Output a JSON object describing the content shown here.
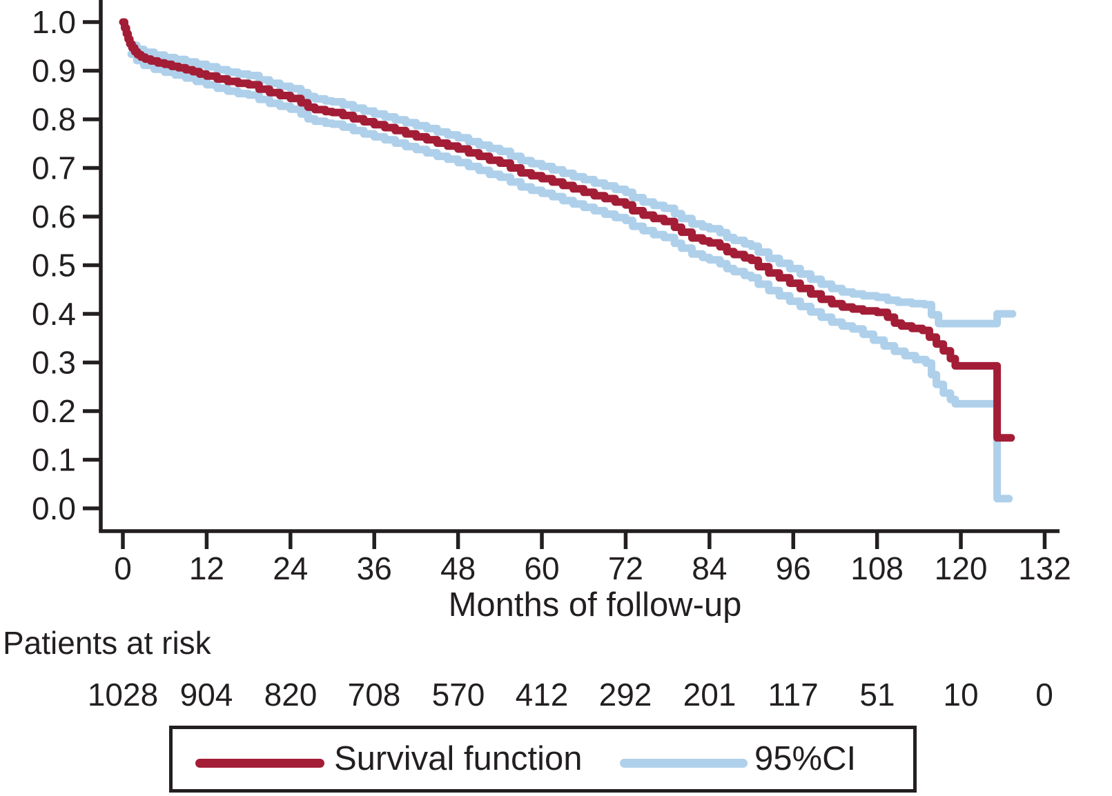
{
  "figure": {
    "background": "#ffffff",
    "text_color": "#231f20"
  },
  "chart_data": {
    "type": "line",
    "subtype": "kaplan-meier-step",
    "title": "",
    "xlabel": "Months of follow-up",
    "ylabel": "",
    "xlim": [
      0,
      132
    ],
    "ylim": [
      0.0,
      1.0
    ],
    "grid": false,
    "legend_position": "bottom",
    "x_ticks": [
      0,
      12,
      24,
      36,
      48,
      60,
      72,
      84,
      96,
      108,
      120,
      132
    ],
    "y_ticks": [
      "0.0",
      "0.1",
      "0.2",
      "0.3",
      "0.4",
      "0.5",
      "0.6",
      "0.7",
      "0.8",
      "0.9",
      "1.0"
    ],
    "series": [
      {
        "name": "Survival function",
        "color": "#a31d36",
        "width": 11,
        "points": [
          [
            0,
            1.0
          ],
          [
            0.25,
            0.988
          ],
          [
            0.5,
            0.976
          ],
          [
            0.75,
            0.965
          ],
          [
            1,
            0.955
          ],
          [
            1.3,
            0.947
          ],
          [
            1.7,
            0.939
          ],
          [
            2.1,
            0.933
          ],
          [
            2.6,
            0.928
          ],
          [
            3.2,
            0.924
          ],
          [
            4,
            0.92
          ],
          [
            5,
            0.916
          ],
          [
            6,
            0.913
          ],
          [
            7,
            0.909
          ],
          [
            8,
            0.906
          ],
          [
            9,
            0.902
          ],
          [
            10,
            0.898
          ],
          [
            11,
            0.893
          ],
          [
            12,
            0.889
          ],
          [
            13.5,
            0.883
          ],
          [
            15,
            0.878
          ],
          [
            16.5,
            0.874
          ],
          [
            18,
            0.871
          ],
          [
            19.5,
            0.862
          ],
          [
            21,
            0.855
          ],
          [
            22.5,
            0.849
          ],
          [
            24,
            0.843
          ],
          [
            25.5,
            0.834
          ],
          [
            26.5,
            0.825
          ],
          [
            27.5,
            0.82
          ],
          [
            29,
            0.816
          ],
          [
            30,
            0.814
          ],
          [
            31.5,
            0.808
          ],
          [
            33,
            0.801
          ],
          [
            34.5,
            0.795
          ],
          [
            36,
            0.789
          ],
          [
            37.5,
            0.783
          ],
          [
            39,
            0.777
          ],
          [
            40.5,
            0.77
          ],
          [
            42,
            0.764
          ],
          [
            43.5,
            0.758
          ],
          [
            45,
            0.751
          ],
          [
            46.5,
            0.745
          ],
          [
            48,
            0.739
          ],
          [
            49.5,
            0.731
          ],
          [
            51,
            0.724
          ],
          [
            52.5,
            0.716
          ],
          [
            54,
            0.71
          ],
          [
            55.5,
            0.7
          ],
          [
            57,
            0.69
          ],
          [
            58.5,
            0.684
          ],
          [
            60,
            0.678
          ],
          [
            61.5,
            0.671
          ],
          [
            63,
            0.664
          ],
          [
            64.5,
            0.657
          ],
          [
            66,
            0.65
          ],
          [
            67.5,
            0.643
          ],
          [
            69,
            0.637
          ],
          [
            70.5,
            0.63
          ],
          [
            72,
            0.624
          ],
          [
            73,
            0.612
          ],
          [
            74.5,
            0.603
          ],
          [
            76,
            0.596
          ],
          [
            77.5,
            0.59
          ],
          [
            79,
            0.578
          ],
          [
            80,
            0.568
          ],
          [
            81.5,
            0.556
          ],
          [
            83,
            0.55
          ],
          [
            84,
            0.546
          ],
          [
            85.5,
            0.538
          ],
          [
            86.5,
            0.528
          ],
          [
            87.5,
            0.522
          ],
          [
            89,
            0.515
          ],
          [
            90,
            0.51
          ],
          [
            91,
            0.497
          ],
          [
            92.5,
            0.484
          ],
          [
            94,
            0.474
          ],
          [
            95.5,
            0.463
          ],
          [
            97,
            0.452
          ],
          [
            98.5,
            0.441
          ],
          [
            100,
            0.43
          ],
          [
            101.5,
            0.421
          ],
          [
            103,
            0.414
          ],
          [
            104.5,
            0.41
          ],
          [
            106,
            0.406
          ],
          [
            108,
            0.403
          ],
          [
            109.5,
            0.393
          ],
          [
            110.5,
            0.381
          ],
          [
            111.5,
            0.375
          ],
          [
            113,
            0.37
          ],
          [
            114.5,
            0.366
          ],
          [
            115.5,
            0.352
          ],
          [
            116.5,
            0.338
          ],
          [
            117.5,
            0.324
          ],
          [
            118.5,
            0.308
          ],
          [
            119.2,
            0.293
          ],
          [
            125.2,
            0.293
          ],
          [
            125.2,
            0.145
          ],
          [
            127.2,
            0.145
          ]
        ]
      },
      {
        "name": "95%CI upper",
        "color": "#afd0ea",
        "width": 11,
        "points": [
          [
            1.2,
            0.952
          ],
          [
            2,
            0.944
          ],
          [
            3,
            0.938
          ],
          [
            4.5,
            0.932
          ],
          [
            6,
            0.927
          ],
          [
            7.5,
            0.923
          ],
          [
            9,
            0.918
          ],
          [
            10.5,
            0.913
          ],
          [
            12,
            0.908
          ],
          [
            13.5,
            0.902
          ],
          [
            15,
            0.897
          ],
          [
            16.5,
            0.893
          ],
          [
            18,
            0.89
          ],
          [
            19.5,
            0.881
          ],
          [
            21,
            0.874
          ],
          [
            22.5,
            0.868
          ],
          [
            24,
            0.863
          ],
          [
            25.5,
            0.855
          ],
          [
            26.5,
            0.847
          ],
          [
            27.5,
            0.842
          ],
          [
            29,
            0.838
          ],
          [
            30,
            0.836
          ],
          [
            31.5,
            0.83
          ],
          [
            33,
            0.823
          ],
          [
            34.5,
            0.817
          ],
          [
            36,
            0.811
          ],
          [
            37.5,
            0.805
          ],
          [
            39,
            0.799
          ],
          [
            40.5,
            0.793
          ],
          [
            42,
            0.787
          ],
          [
            43.5,
            0.781
          ],
          [
            45,
            0.774
          ],
          [
            46.5,
            0.768
          ],
          [
            48,
            0.762
          ],
          [
            49.5,
            0.754
          ],
          [
            51,
            0.747
          ],
          [
            52.5,
            0.74
          ],
          [
            54,
            0.734
          ],
          [
            55.5,
            0.724
          ],
          [
            57,
            0.715
          ],
          [
            58.5,
            0.709
          ],
          [
            60,
            0.703
          ],
          [
            61.5,
            0.696
          ],
          [
            63,
            0.689
          ],
          [
            64.5,
            0.682
          ],
          [
            66,
            0.676
          ],
          [
            67.5,
            0.669
          ],
          [
            69,
            0.663
          ],
          [
            70.5,
            0.656
          ],
          [
            72,
            0.65
          ],
          [
            73,
            0.639
          ],
          [
            74.5,
            0.63
          ],
          [
            76,
            0.623
          ],
          [
            77.5,
            0.617
          ],
          [
            79,
            0.606
          ],
          [
            80,
            0.596
          ],
          [
            81.5,
            0.585
          ],
          [
            83,
            0.579
          ],
          [
            84,
            0.575
          ],
          [
            85.5,
            0.567
          ],
          [
            86.5,
            0.557
          ],
          [
            87.5,
            0.551
          ],
          [
            89,
            0.544
          ],
          [
            90,
            0.539
          ],
          [
            91,
            0.527
          ],
          [
            92.5,
            0.514
          ],
          [
            94,
            0.504
          ],
          [
            95.5,
            0.493
          ],
          [
            97,
            0.482
          ],
          [
            98.5,
            0.471
          ],
          [
            100,
            0.461
          ],
          [
            101.5,
            0.452
          ],
          [
            103,
            0.445
          ],
          [
            104.5,
            0.441
          ],
          [
            106,
            0.437
          ],
          [
            108,
            0.434
          ],
          [
            109.5,
            0.428
          ],
          [
            111,
            0.424
          ],
          [
            113,
            0.421
          ],
          [
            114.8,
            0.419
          ],
          [
            115.8,
            0.398
          ],
          [
            116.8,
            0.38
          ],
          [
            125.2,
            0.38
          ],
          [
            125.2,
            0.4
          ],
          [
            127.4,
            0.4
          ]
        ]
      },
      {
        "name": "95%CI lower",
        "color": "#afd0ea",
        "width": 11,
        "points": [
          [
            1.2,
            0.934
          ],
          [
            2,
            0.921
          ],
          [
            3,
            0.911
          ],
          [
            4.5,
            0.903
          ],
          [
            6,
            0.897
          ],
          [
            7.5,
            0.891
          ],
          [
            9,
            0.885
          ],
          [
            10.5,
            0.878
          ],
          [
            12,
            0.871
          ],
          [
            13.5,
            0.864
          ],
          [
            15,
            0.858
          ],
          [
            16.5,
            0.853
          ],
          [
            18,
            0.85
          ],
          [
            19.5,
            0.841
          ],
          [
            21,
            0.833
          ],
          [
            22.5,
            0.827
          ],
          [
            24,
            0.821
          ],
          [
            25.5,
            0.811
          ],
          [
            26.5,
            0.801
          ],
          [
            27.5,
            0.796
          ],
          [
            29,
            0.792
          ],
          [
            30,
            0.79
          ],
          [
            31.5,
            0.784
          ],
          [
            33,
            0.777
          ],
          [
            34.5,
            0.77
          ],
          [
            36,
            0.764
          ],
          [
            37.5,
            0.758
          ],
          [
            39,
            0.751
          ],
          [
            40.5,
            0.744
          ],
          [
            42,
            0.738
          ],
          [
            43.5,
            0.731
          ],
          [
            45,
            0.724
          ],
          [
            46.5,
            0.718
          ],
          [
            48,
            0.711
          ],
          [
            49.5,
            0.703
          ],
          [
            51,
            0.695
          ],
          [
            52.5,
            0.687
          ],
          [
            54,
            0.681
          ],
          [
            55.5,
            0.671
          ],
          [
            57,
            0.661
          ],
          [
            58.5,
            0.654
          ],
          [
            60,
            0.648
          ],
          [
            61.5,
            0.641
          ],
          [
            63,
            0.633
          ],
          [
            64.5,
            0.626
          ],
          [
            66,
            0.619
          ],
          [
            67.5,
            0.612
          ],
          [
            69,
            0.605
          ],
          [
            70.5,
            0.598
          ],
          [
            72,
            0.592
          ],
          [
            73,
            0.58
          ],
          [
            74.5,
            0.571
          ],
          [
            76,
            0.563
          ],
          [
            77.5,
            0.557
          ],
          [
            79,
            0.545
          ],
          [
            80,
            0.535
          ],
          [
            81.5,
            0.523
          ],
          [
            83,
            0.516
          ],
          [
            84,
            0.511
          ],
          [
            85.5,
            0.503
          ],
          [
            86.5,
            0.493
          ],
          [
            87.5,
            0.487
          ],
          [
            89,
            0.479
          ],
          [
            90,
            0.474
          ],
          [
            91,
            0.461
          ],
          [
            92.5,
            0.448
          ],
          [
            94,
            0.437
          ],
          [
            95.5,
            0.426
          ],
          [
            97,
            0.415
          ],
          [
            98.5,
            0.404
          ],
          [
            100,
            0.393
          ],
          [
            101.5,
            0.383
          ],
          [
            103,
            0.375
          ],
          [
            104.5,
            0.369
          ],
          [
            106,
            0.358
          ],
          [
            107.5,
            0.346
          ],
          [
            109,
            0.334
          ],
          [
            110.5,
            0.323
          ],
          [
            112,
            0.314
          ],
          [
            113.5,
            0.306
          ],
          [
            115,
            0.299
          ],
          [
            115.8,
            0.275
          ],
          [
            116.5,
            0.255
          ],
          [
            117.5,
            0.237
          ],
          [
            118.5,
            0.224
          ],
          [
            119.2,
            0.215
          ],
          [
            125.2,
            0.215
          ],
          [
            125.2,
            0.02
          ],
          [
            126.9,
            0.02
          ]
        ]
      }
    ]
  },
  "at_risk": {
    "label": "Patients at risk",
    "months": [
      0,
      12,
      24,
      36,
      48,
      60,
      72,
      84,
      96,
      108,
      120,
      132
    ],
    "counts": [
      "1028",
      "904",
      "820",
      "708",
      "570",
      "412",
      "292",
      "201",
      "117",
      "51",
      "10",
      "0"
    ]
  },
  "legend": {
    "items": [
      {
        "label": "Survival function",
        "color": "#a31d36"
      },
      {
        "label": "95%CI",
        "color": "#afd0ea"
      }
    ]
  }
}
